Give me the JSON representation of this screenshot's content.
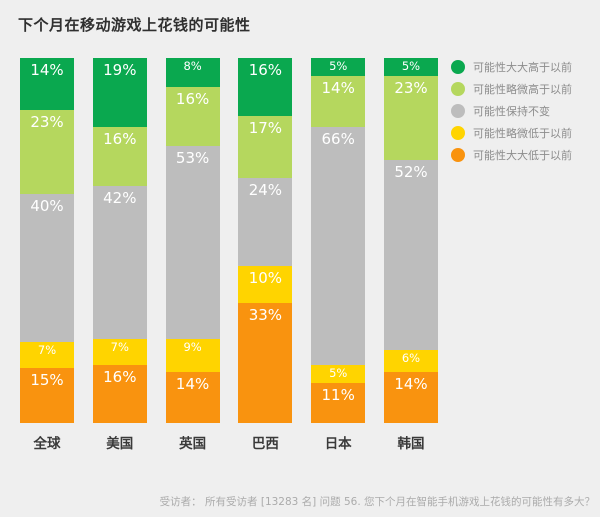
{
  "page": {
    "background": "#efefef"
  },
  "chart_data": {
    "type": "bar",
    "variant": "stacked-column-100",
    "title": "下个月在移动游戏上花钱的可能性",
    "value_suffix": "%",
    "legend_position": "right",
    "grid": false,
    "categories": [
      "全球",
      "美国",
      "英国",
      "巴西",
      "日本",
      "韩国"
    ],
    "series": [
      {
        "name": "可能性大大高于以前",
        "color": "#0aa84f",
        "values": [
          14,
          19,
          8,
          16,
          5,
          5
        ]
      },
      {
        "name": "可能性略微高于以前",
        "color": "#b5d75e",
        "values": [
          23,
          16,
          16,
          17,
          14,
          23
        ]
      },
      {
        "name": "可能性保持不变",
        "color": "#bdbdbd",
        "values": [
          40,
          42,
          53,
          24,
          66,
          52
        ]
      },
      {
        "name": "可能性略微低于以前",
        "color": "#ffd400",
        "values": [
          7,
          7,
          9,
          10,
          5,
          6
        ]
      },
      {
        "name": "可能性大大低于以前",
        "color": "#f9930f",
        "values": [
          15,
          16,
          14,
          33,
          11,
          14
        ]
      }
    ]
  },
  "footer": {
    "text": "受访者： 所有受访者 [13283 名] 问题 56. 您下个月在智能手机游戏上花钱的可能性有多大？"
  }
}
